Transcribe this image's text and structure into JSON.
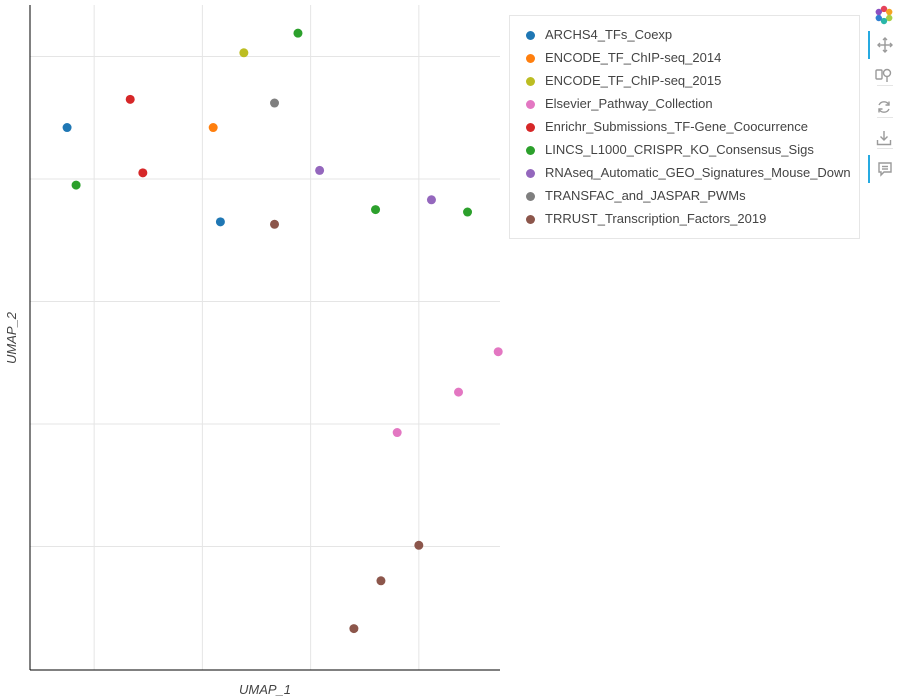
{
  "chart_data": {
    "type": "scatter",
    "xlabel": "UMAP_1",
    "ylabel": "UMAP_2",
    "grid": true,
    "legend_position": "top-right, outside",
    "series": [
      {
        "name": "ARCHS4_TFs_Coexp",
        "color": "#1f77b4",
        "points": [
          {
            "x": 0.05,
            "y": 7.42
          },
          {
            "x": 0.9,
            "y": 6.65
          }
        ]
      },
      {
        "name": "ENCODE_TF_ChIP-seq_2014",
        "color": "#ff7f0e",
        "points": [
          {
            "x": 0.86,
            "y": 7.42
          }
        ]
      },
      {
        "name": "ENCODE_TF_ChIP-seq_2015",
        "color": "#bcbd22",
        "points": [
          {
            "x": 1.03,
            "y": 8.03
          }
        ]
      },
      {
        "name": "Elsevier_Pathway_Collection",
        "color": "#e377c2",
        "points": [
          {
            "x": 2.44,
            "y": 5.59
          },
          {
            "x": 2.22,
            "y": 5.26
          },
          {
            "x": 1.88,
            "y": 4.93
          }
        ]
      },
      {
        "name": "Enrichr_Submissions_TF-Gene_Coocurrence",
        "color": "#d62728",
        "points": [
          {
            "x": 0.4,
            "y": 7.65
          },
          {
            "x": 0.47,
            "y": 7.05
          }
        ]
      },
      {
        "name": "LINCS_L1000_CRISPR_KO_Consensus_Sigs",
        "color": "#2ca02c",
        "points": [
          {
            "x": 1.33,
            "y": 8.19
          },
          {
            "x": 0.1,
            "y": 6.95
          },
          {
            "x": 1.76,
            "y": 6.75
          },
          {
            "x": 2.27,
            "y": 6.73
          }
        ]
      },
      {
        "name": "RNAseq_Automatic_GEO_Signatures_Mouse_Down",
        "color": "#9467bd",
        "points": [
          {
            "x": 1.45,
            "y": 7.07
          },
          {
            "x": 2.07,
            "y": 6.83
          }
        ]
      },
      {
        "name": "TRANSFAC_and_JASPAR_PWMs",
        "color": "#7f7f7f",
        "points": [
          {
            "x": 1.2,
            "y": 7.62
          }
        ]
      },
      {
        "name": "TRRUST_Transcription_Factors_2019",
        "color": "#8c564b",
        "points": [
          {
            "x": 1.2,
            "y": 6.63
          },
          {
            "x": 2.0,
            "y": 4.01
          },
          {
            "x": 1.79,
            "y": 3.72
          },
          {
            "x": 1.64,
            "y": 3.33
          }
        ]
      }
    ],
    "xlim": [
      -0.15,
      2.45
    ],
    "ylim": [
      3.0,
      8.42
    ],
    "x_gridlines": [
      0.2,
      0.8,
      1.4,
      2.0
    ],
    "y_gridlines": [
      4.0,
      5.0,
      6.0,
      7.0,
      8.0
    ]
  },
  "toolbar": {
    "logo": "bokeh-logo-icon",
    "tools": [
      "pan-icon",
      "box-zoom-icon",
      "reset-icon",
      "save-icon",
      "hover-icon"
    ]
  }
}
